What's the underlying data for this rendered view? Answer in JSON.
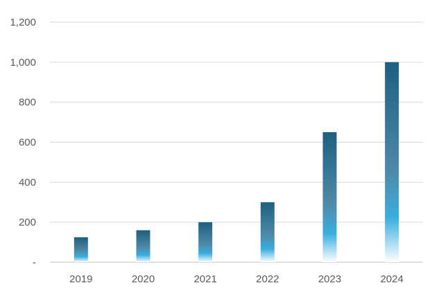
{
  "chart_data": {
    "type": "bar",
    "title": "",
    "xlabel": "",
    "ylabel": "",
    "categories": [
      "2019",
      "2020",
      "2021",
      "2022",
      "2023",
      "2024"
    ],
    "values": [
      125,
      160,
      200,
      300,
      650,
      1000
    ],
    "ylim": [
      0,
      1200
    ],
    "y_ticks": [
      0,
      200,
      400,
      600,
      800,
      1000,
      1200
    ],
    "y_tick_labels": [
      "-",
      "200",
      "400",
      "600",
      "800",
      "1,000",
      "1,200"
    ],
    "grid": true,
    "legend": "none",
    "colors": {
      "bar_top": "#1f5f7f",
      "bar_mid": "#3aaee0",
      "bar_bottom": "#ffffff",
      "grid": "#d9d9d9",
      "text": "#595959"
    }
  }
}
